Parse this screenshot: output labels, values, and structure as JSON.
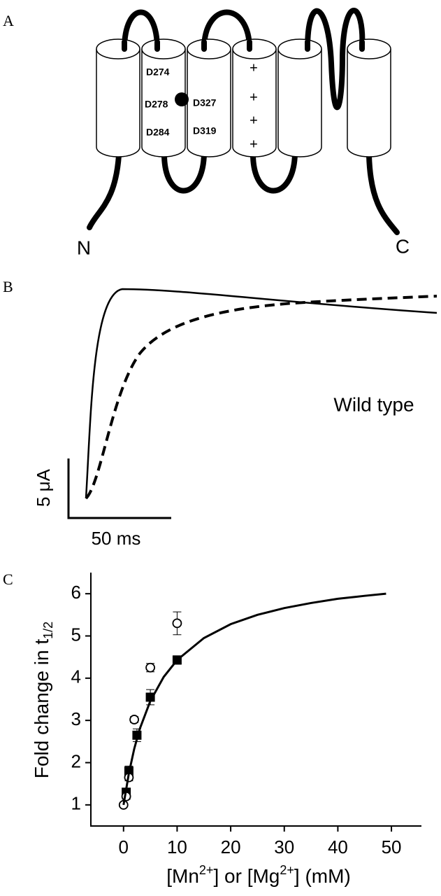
{
  "diagram": {
    "panel_label": "A",
    "residues": [
      "D274",
      "D278",
      "D284",
      "D327",
      "D319"
    ],
    "charges": [
      "+",
      "+",
      "+",
      "+"
    ],
    "termini": [
      "N",
      "C"
    ]
  },
  "chart_data": [
    {
      "type": "trace",
      "panel_label": "B",
      "annotation": "Wild type",
      "scale_y": "5 μA",
      "scale_x": "50 ms"
    },
    {
      "type": "scatter",
      "panel_label": "C",
      "ylabel": "Fold change in t",
      "ylabel_sub": "1/2",
      "xlabel_parts": [
        "[Mn",
        "2+",
        "] or [Mg",
        "2+",
        "] (mM)"
      ],
      "xlabel_sup": [
        false,
        true,
        false,
        true,
        false
      ],
      "xlim": [
        -6.1,
        55.6
      ],
      "xticks": [
        0,
        10,
        20,
        30,
        40,
        50
      ],
      "ylim": [
        0.5,
        6.5
      ],
      "yticks": [
        1,
        2,
        3,
        4,
        5,
        6
      ],
      "series": [
        {
          "marker": "square",
          "color": "#000000",
          "x": [
            0.5,
            1,
            2.5,
            5,
            10
          ],
          "values": [
            1.3,
            1.8,
            2.65,
            3.55,
            4.43
          ],
          "errors": [
            0.08,
            0.12,
            0.15,
            0.18,
            0.1
          ]
        },
        {
          "marker": "circle",
          "color": "#000000",
          "x": [
            0,
            0.5,
            1,
            2,
            5,
            10
          ],
          "values": [
            1.0,
            1.2,
            1.65,
            3.02,
            4.25,
            5.3
          ],
          "errors": [
            0.05,
            0.07,
            0.08,
            0.07,
            0.1,
            0.27
          ]
        },
        {
          "marker": "line",
          "color": "#000000",
          "x": [
            0,
            1,
            2,
            3,
            5,
            7.5,
            10,
            15,
            20,
            25,
            30,
            35,
            40,
            45,
            49
          ],
          "values": [
            1,
            1.75,
            2.33,
            2.79,
            3.46,
            4.03,
            4.43,
            4.95,
            5.28,
            5.5,
            5.66,
            5.78,
            5.88,
            5.95,
            6.0
          ]
        }
      ]
    }
  ]
}
